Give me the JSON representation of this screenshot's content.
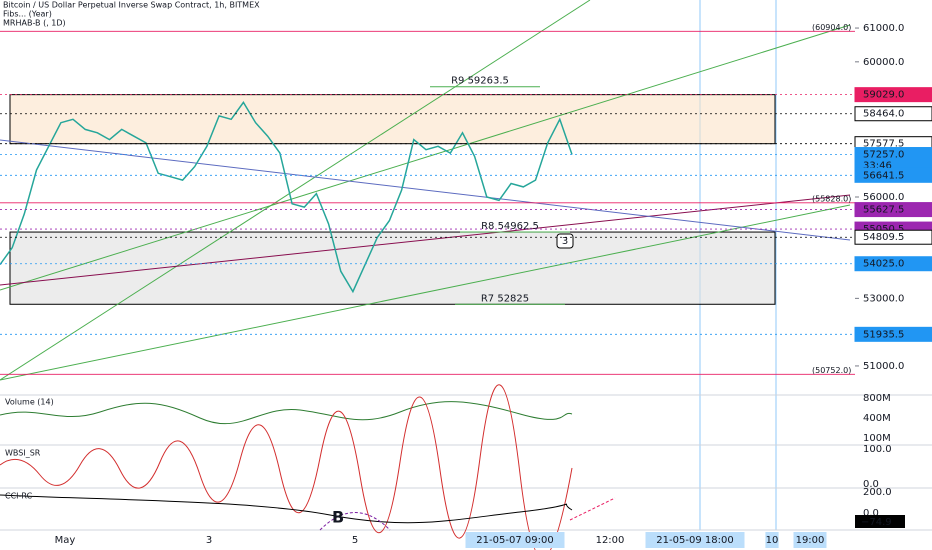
{
  "header": {
    "title": "Bitcoin / US Dollar Perpetual Inverse Swap Contract, 1h, BITMEX",
    "indicators": [
      "Fibs... (Year)",
      "MRHAB-B (, 1D)"
    ]
  },
  "chart_data": {
    "type": "line",
    "color": "#26a69a",
    "values": [
      54000,
      54500,
      55500,
      56800,
      57500,
      58200,
      58300,
      58000,
      57900,
      57700,
      58000,
      57800,
      57600,
      56700,
      56600,
      56500,
      56900,
      57500,
      58400,
      58300,
      58800,
      58200,
      57800,
      57300,
      55800,
      55700,
      56100,
      55200,
      53800,
      53200,
      54000,
      54800,
      55300,
      56200,
      57700,
      57400,
      57500,
      57300,
      57900,
      57200,
      56000,
      55900,
      56400,
      56300,
      56500,
      57600,
      58300,
      57257
    ],
    "ylim": [
      50140,
      61830
    ],
    "yticks": [
      {
        "value": 61000,
        "label": "61000.0"
      },
      {
        "value": 60000,
        "label": "60000.0"
      },
      {
        "value": 56000,
        "label": "56000.0"
      },
      {
        "value": 53000,
        "label": "53000.0"
      },
      {
        "value": 51000,
        "label": "51000.0"
      }
    ],
    "price_labels": [
      {
        "value": 59029,
        "label": "59029.0",
        "color": "#e91e63"
      },
      {
        "value": 58464,
        "label": "58464.0",
        "color": "#ffffff"
      },
      {
        "value": 57577.5,
        "label": "57577.5",
        "color": "#ffffff"
      },
      {
        "value": 57257,
        "label": "57257.0",
        "color": "#2196f3",
        "countdown": "33:46"
      },
      {
        "value": 56641.5,
        "label": "56641.5",
        "color": "#2196f3"
      },
      {
        "value": 55627.5,
        "label": "55627.5",
        "color": "#9c27b0"
      },
      {
        "value": 55050.5,
        "label": "55050.5",
        "color": "#9c27b0"
      },
      {
        "value": 54809.5,
        "label": "54809.5",
        "color": "#ffffff"
      },
      {
        "value": 54025,
        "label": "54025.0",
        "color": "#2196f3"
      },
      {
        "value": 51935.5,
        "label": "51935.5",
        "color": "#2196f3"
      }
    ],
    "fib_labels": [
      {
        "value": 60904,
        "label": "(60904.0)"
      },
      {
        "value": 55828,
        "label": "(55828.0)"
      },
      {
        "value": 50752,
        "label": "(50752.0)"
      }
    ],
    "zones": [
      {
        "top": 59029,
        "bottom": 57577.5,
        "color": "#fbe3c8"
      },
      {
        "top": 54962.5,
        "bottom": 52825,
        "color": "#e0e0e0"
      }
    ],
    "annotations": [
      {
        "value": 59263.5,
        "label": "R9 59263.5"
      },
      {
        "value": 54962.5,
        "label": "R8 54962.5"
      },
      {
        "value": 52825,
        "label": "R7 52825"
      }
    ],
    "marker": "3",
    "x_labels": [
      {
        "label": "May",
        "highlighted": false
      },
      {
        "label": "3",
        "highlighted": false
      },
      {
        "label": "5",
        "highlighted": false
      },
      {
        "label": "21-05-07  09:00",
        "highlighted": true
      },
      {
        "label": "12:00",
        "highlighted": false
      },
      {
        "label": "21-05-09  18:00",
        "highlighted": true
      },
      {
        "label": "10",
        "highlighted": true
      },
      {
        "label": "19:00",
        "highlighted": true
      }
    ]
  },
  "panels": [
    {
      "title": "Volume (14)",
      "ticks": [
        "800M",
        "400M",
        "100M"
      ]
    },
    {
      "title": "WBSI_SR",
      "ticks": [
        "100.0",
        "0.0"
      ]
    },
    {
      "title": "CCI-RC",
      "ticks": [
        "200.0",
        "0.0"
      ],
      "current": "−74.9",
      "letter": "B"
    }
  ]
}
